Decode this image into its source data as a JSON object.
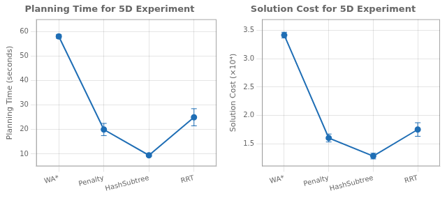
{
  "chart_data": [
    {
      "type": "line",
      "title": "Planning Time for 5D Experiment",
      "y_label": "Planning Time (seconds)",
      "categories": [
        "WA*",
        "Penalty",
        "HashSubtree",
        "RRT"
      ],
      "values": [
        58.0,
        20.0,
        9.5,
        25.0
      ],
      "errors": [
        0.8,
        2.5,
        0.5,
        3.5
      ],
      "color": "#1f6eb5",
      "marker": "circle",
      "ylim": [
        5,
        65
      ],
      "yticks": [
        10,
        20,
        30,
        40,
        50,
        60
      ],
      "grid": true
    },
    {
      "type": "line",
      "title": "Solution Cost for 5D Experiment",
      "y_label": "Solution Cost (×10⁴)",
      "categories": [
        "WA*",
        "Penalty",
        "HashSubtree",
        "RRT"
      ],
      "values": [
        3.42,
        1.6,
        1.28,
        1.75
      ],
      "errors": [
        0.05,
        0.07,
        0.05,
        0.12
      ],
      "color": "#1f6eb5",
      "marker": "circle",
      "ylim": [
        1.1,
        3.7
      ],
      "yticks": [
        1.5,
        {
          "value": 2.0,
          "label": "2.0"
        },
        2.5,
        {
          "value": 3.0,
          "label": "3.0"
        },
        3.5
      ],
      "grid": true
    }
  ]
}
